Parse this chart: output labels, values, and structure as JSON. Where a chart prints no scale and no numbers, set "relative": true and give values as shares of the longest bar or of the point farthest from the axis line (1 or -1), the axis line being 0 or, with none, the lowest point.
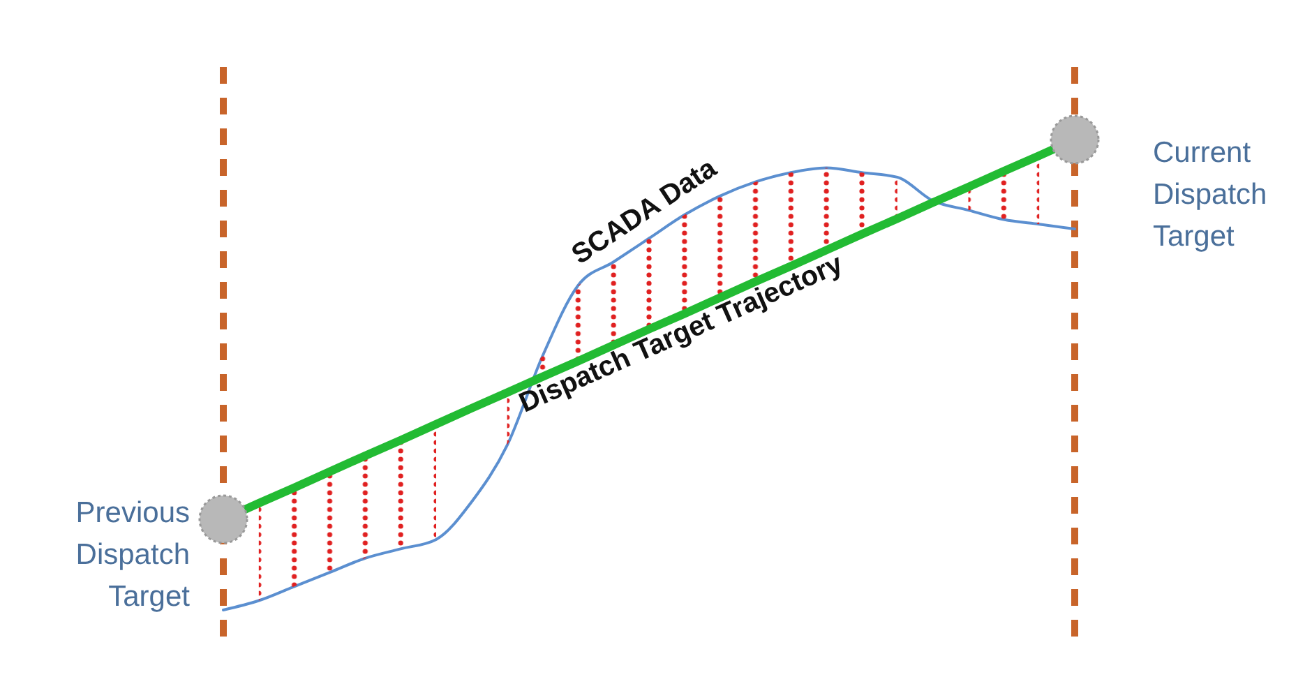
{
  "chart_data": {
    "type": "line",
    "relative": true,
    "categories": [
      null,
      null,
      null,
      null,
      null,
      null,
      null,
      null,
      null,
      null,
      null,
      null,
      null,
      null,
      null,
      null,
      null,
      null,
      null,
      null,
      null,
      null,
      null,
      null,
      null
    ],
    "series": [
      {
        "name": "SCADA Data",
        "color": "#5b8fd0",
        "values": [
          0,
          0.02,
          0.05,
          0.08,
          0.11,
          0.13,
          0.15,
          0.23,
          0.35,
          0.54,
          0.69,
          0.74,
          0.79,
          0.84,
          0.88,
          0.91,
          0.93,
          0.94,
          0.93,
          0.92,
          0.87,
          0.85,
          0.83,
          0.82,
          0.81
        ]
      },
      {
        "name": "Dispatch Target Trajectory",
        "color": "#22bb33",
        "values": [
          0.193,
          0.227,
          0.26,
          0.294,
          0.328,
          0.361,
          0.395,
          0.429,
          0.462,
          0.496,
          0.529,
          0.563,
          0.597,
          0.63,
          0.664,
          0.698,
          0.731,
          0.765,
          0.799,
          0.832,
          0.866,
          0.899,
          0.933,
          0.966,
          1
        ],
        "lower": [
          null,
          0.02,
          0.05,
          0.08,
          0.11,
          0.13,
          0.15,
          null,
          0.35,
          0.496,
          0.529,
          0.563,
          0.597,
          0.63,
          0.664,
          0.698,
          0.731,
          0.765,
          0.799,
          0.832,
          null,
          0.85,
          0.83,
          0.82,
          null
        ],
        "upper": [
          null,
          0.227,
          0.26,
          0.294,
          0.328,
          0.361,
          0.395,
          null,
          0.462,
          0.54,
          0.69,
          0.74,
          0.79,
          0.84,
          0.88,
          0.91,
          0.93,
          0.94,
          0.93,
          0.92,
          null,
          0.899,
          0.933,
          0.966,
          null
        ]
      }
    ],
    "annotations": [
      "Previous Dispatch Target",
      "Current Dispatch Target"
    ]
  }
}
